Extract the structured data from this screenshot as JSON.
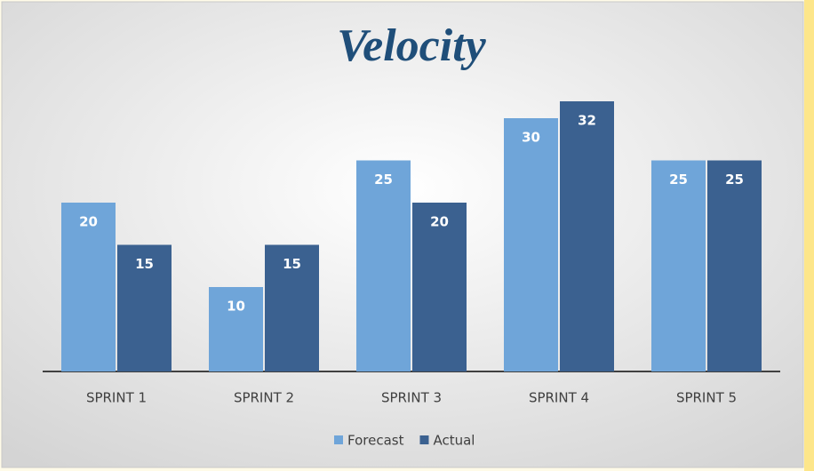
{
  "chart_data": {
    "type": "bar",
    "title": "Velocity",
    "categories": [
      "SPRINT 1",
      "SPRINT 2",
      "SPRINT 3",
      "SPRINT 4",
      "SPRINT 5"
    ],
    "series": [
      {
        "name": "Forecast",
        "color": "#6fa5d9",
        "values": [
          20,
          10,
          25,
          30,
          25
        ]
      },
      {
        "name": "Actual",
        "color": "#3b6190",
        "values": [
          15,
          15,
          20,
          32,
          25
        ]
      }
    ],
    "legend": "bottom"
  }
}
